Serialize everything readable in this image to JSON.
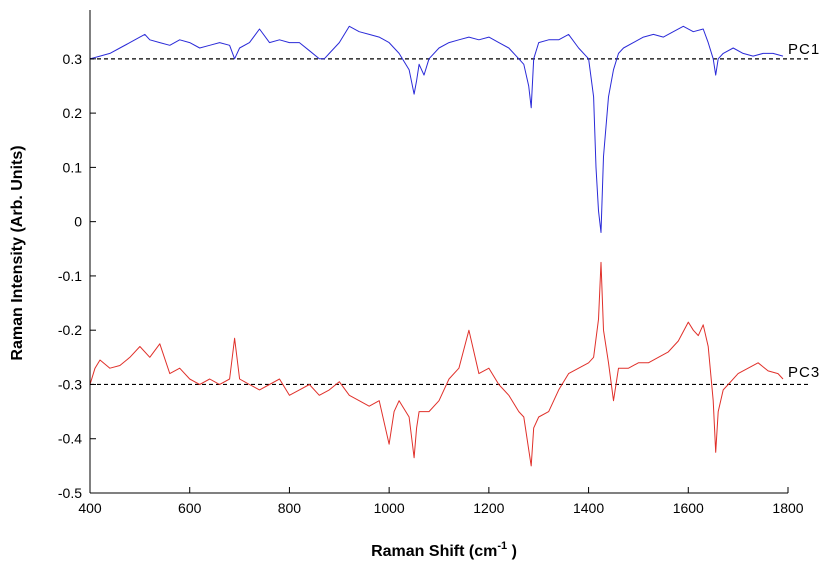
{
  "chart_data": {
    "type": "line",
    "xlabel": "Raman Shift (cm",
    "xlabel_sup": "-1",
    "xlabel_end": " )",
    "ylabel": "Raman Intensity (Arb. Units)",
    "xlim": [
      400,
      1800
    ],
    "ylim": [
      -0.5,
      0.39
    ],
    "xticks": [
      400,
      600,
      800,
      1000,
      1200,
      1400,
      1600,
      1800
    ],
    "yticks": [
      -0.5,
      -0.4,
      -0.3,
      -0.2,
      -0.1,
      0,
      0.1,
      0.2,
      0.3
    ],
    "grid": false,
    "reference_lines": [
      {
        "y": 0.3,
        "style": "dashed",
        "color": "#000000"
      },
      {
        "y": -0.3,
        "style": "dashed",
        "color": "#000000"
      }
    ],
    "series": [
      {
        "name": "PC1",
        "color": "#2a2ad8",
        "x": [
          400,
          420,
          440,
          460,
          480,
          500,
          510,
          520,
          540,
          560,
          580,
          600,
          620,
          640,
          660,
          680,
          690,
          700,
          720,
          740,
          760,
          780,
          800,
          820,
          840,
          860,
          870,
          880,
          900,
          920,
          940,
          960,
          980,
          1000,
          1020,
          1040,
          1050,
          1055,
          1060,
          1070,
          1080,
          1100,
          1120,
          1140,
          1160,
          1180,
          1200,
          1220,
          1240,
          1260,
          1270,
          1280,
          1285,
          1290,
          1300,
          1320,
          1340,
          1360,
          1380,
          1400,
          1410,
          1415,
          1420,
          1425,
          1430,
          1440,
          1450,
          1460,
          1470,
          1490,
          1510,
          1530,
          1550,
          1570,
          1590,
          1610,
          1630,
          1640,
          1650,
          1655,
          1660,
          1670,
          1690,
          1710,
          1730,
          1750,
          1770,
          1790
        ],
        "y": [
          0.3,
          0.305,
          0.31,
          0.32,
          0.33,
          0.34,
          0.345,
          0.335,
          0.33,
          0.325,
          0.335,
          0.33,
          0.32,
          0.325,
          0.33,
          0.325,
          0.3,
          0.32,
          0.33,
          0.355,
          0.33,
          0.335,
          0.33,
          0.33,
          0.315,
          0.3,
          0.3,
          0.31,
          0.33,
          0.36,
          0.35,
          0.345,
          0.34,
          0.33,
          0.31,
          0.28,
          0.235,
          0.26,
          0.29,
          0.27,
          0.3,
          0.32,
          0.33,
          0.335,
          0.34,
          0.335,
          0.34,
          0.33,
          0.32,
          0.3,
          0.29,
          0.25,
          0.21,
          0.3,
          0.33,
          0.335,
          0.335,
          0.345,
          0.32,
          0.3,
          0.23,
          0.1,
          0.02,
          -0.02,
          0.12,
          0.23,
          0.28,
          0.31,
          0.32,
          0.33,
          0.34,
          0.345,
          0.34,
          0.35,
          0.36,
          0.35,
          0.355,
          0.33,
          0.3,
          0.27,
          0.3,
          0.31,
          0.32,
          0.31,
          0.305,
          0.31,
          0.31,
          0.305
        ]
      },
      {
        "name": "PC3",
        "color": "#e0302a",
        "x": [
          400,
          410,
          420,
          440,
          460,
          480,
          500,
          520,
          540,
          560,
          580,
          600,
          620,
          640,
          660,
          680,
          690,
          700,
          720,
          740,
          760,
          780,
          800,
          820,
          840,
          860,
          880,
          900,
          920,
          940,
          960,
          980,
          1000,
          1010,
          1020,
          1040,
          1050,
          1055,
          1060,
          1080,
          1100,
          1120,
          1140,
          1160,
          1170,
          1180,
          1200,
          1220,
          1240,
          1260,
          1270,
          1280,
          1285,
          1290,
          1300,
          1320,
          1340,
          1360,
          1380,
          1400,
          1410,
          1420,
          1425,
          1430,
          1440,
          1450,
          1460,
          1480,
          1500,
          1520,
          1540,
          1560,
          1580,
          1600,
          1610,
          1620,
          1630,
          1640,
          1650,
          1655,
          1660,
          1670,
          1680,
          1700,
          1720,
          1740,
          1760,
          1780,
          1790
        ],
        "y": [
          -0.3,
          -0.27,
          -0.255,
          -0.27,
          -0.265,
          -0.25,
          -0.23,
          -0.25,
          -0.225,
          -0.28,
          -0.27,
          -0.29,
          -0.3,
          -0.29,
          -0.3,
          -0.29,
          -0.215,
          -0.29,
          -0.3,
          -0.31,
          -0.3,
          -0.29,
          -0.32,
          -0.31,
          -0.3,
          -0.32,
          -0.31,
          -0.295,
          -0.32,
          -0.33,
          -0.34,
          -0.33,
          -0.41,
          -0.35,
          -0.33,
          -0.36,
          -0.435,
          -0.38,
          -0.35,
          -0.35,
          -0.33,
          -0.29,
          -0.27,
          -0.2,
          -0.24,
          -0.28,
          -0.27,
          -0.3,
          -0.32,
          -0.35,
          -0.36,
          -0.42,
          -0.45,
          -0.38,
          -0.36,
          -0.35,
          -0.31,
          -0.28,
          -0.27,
          -0.26,
          -0.25,
          -0.18,
          -0.075,
          -0.2,
          -0.26,
          -0.33,
          -0.27,
          -0.27,
          -0.26,
          -0.26,
          -0.25,
          -0.24,
          -0.22,
          -0.185,
          -0.2,
          -0.21,
          -0.19,
          -0.23,
          -0.33,
          -0.425,
          -0.35,
          -0.31,
          -0.3,
          -0.28,
          -0.27,
          -0.26,
          -0.275,
          -0.28,
          -0.29
        ]
      }
    ]
  }
}
